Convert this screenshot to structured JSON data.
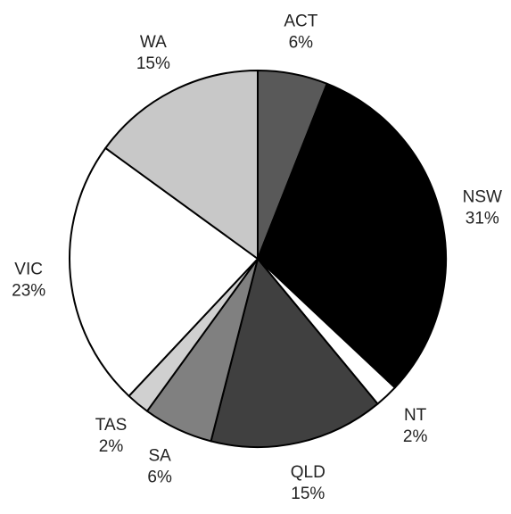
{
  "chart_data": {
    "type": "pie",
    "categories": [
      "ACT",
      "NSW",
      "NT",
      "QLD",
      "SA",
      "TAS",
      "VIC",
      "WA"
    ],
    "values": [
      6,
      31,
      2,
      15,
      6,
      2,
      23,
      15
    ],
    "value_labels": [
      "6%",
      "31%",
      "2%",
      "15%",
      "6%",
      "2%",
      "23%",
      "15%"
    ],
    "colors": [
      "#595959",
      "#000000",
      "#ffffff",
      "#404040",
      "#808080",
      "#d0d0d0",
      "#ffffff",
      "#c8c8c8"
    ]
  }
}
